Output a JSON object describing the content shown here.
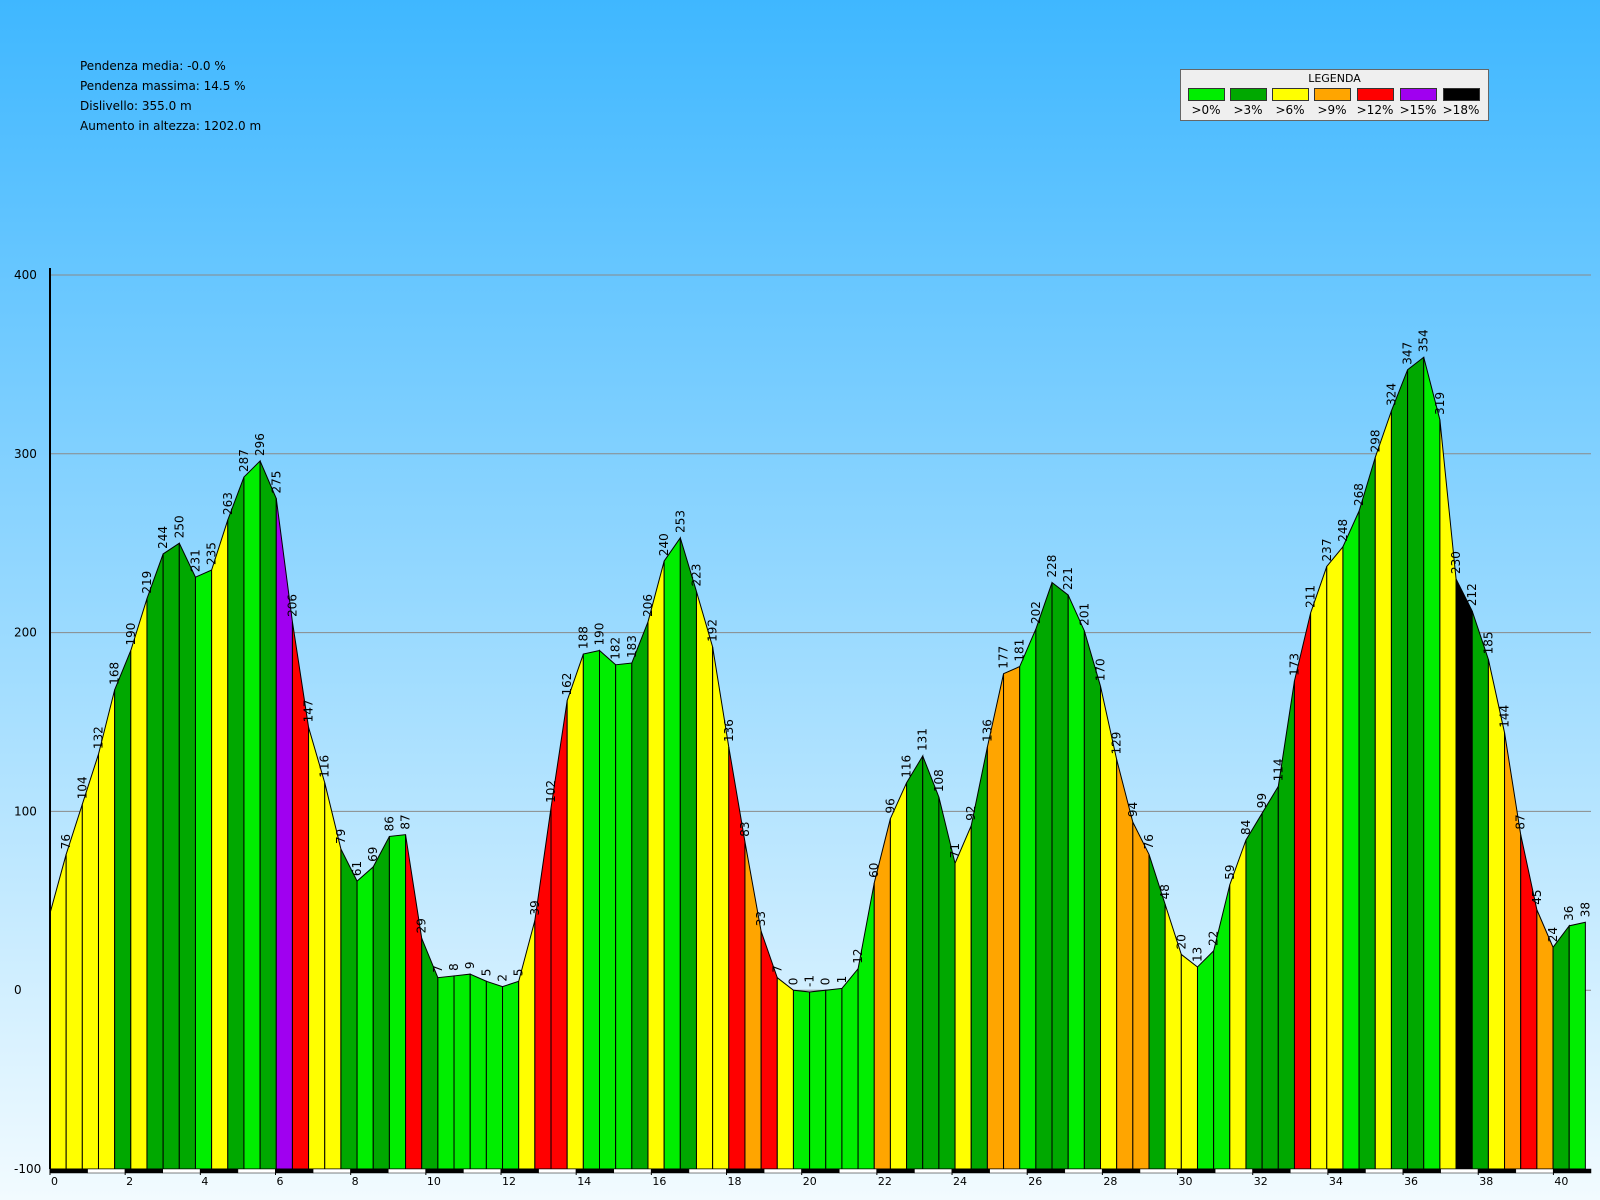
{
  "stats": [
    "Pendenza media: -0.0 %",
    "Pendenza massima: 14.5 %",
    "Dislivello: 355.0 m",
    "Aumento in altezza: 1202.0 m"
  ],
  "legend": {
    "title": "LEGENDA",
    "items": [
      {
        "label": ">0%",
        "color": "#00ee00"
      },
      {
        "label": ">3%",
        "color": "#00a800"
      },
      {
        "label": ">6%",
        "color": "#ffff00"
      },
      {
        "label": ">9%",
        "color": "#ffa500"
      },
      {
        "label": ">12%",
        "color": "#ff0000"
      },
      {
        "label": ">15%",
        "color": "#a000f0"
      },
      {
        "label": ">18%",
        "color": "#000000"
      }
    ]
  },
  "chart_data": {
    "type": "area",
    "xlim": [
      0,
      41
    ],
    "ylim": [
      -100,
      400
    ],
    "yticks": [
      400,
      300,
      200,
      100,
      0,
      -100
    ],
    "xticks": [
      0,
      2,
      4,
      6,
      8,
      10,
      12,
      14,
      16,
      18,
      20,
      22,
      24,
      26,
      28,
      30,
      32,
      34,
      36,
      38,
      40
    ],
    "grid": true,
    "points": [
      {
        "x": 0.0,
        "y": 43,
        "label": "",
        "color": "#ffff00"
      },
      {
        "x": 0.43,
        "y": 76,
        "label": "76",
        "color": "#ffff00"
      },
      {
        "x": 0.86,
        "y": 104,
        "label": "104",
        "color": "#ffff00"
      },
      {
        "x": 1.29,
        "y": 132,
        "label": "132",
        "color": "#ffff00"
      },
      {
        "x": 1.72,
        "y": 168,
        "label": "168",
        "color": "#00a800"
      },
      {
        "x": 2.15,
        "y": 190,
        "label": "190",
        "color": "#ffff00"
      },
      {
        "x": 2.58,
        "y": 219,
        "label": "219",
        "color": "#00a800"
      },
      {
        "x": 3.01,
        "y": 244,
        "label": "244",
        "color": "#00a800"
      },
      {
        "x": 3.44,
        "y": 250,
        "label": "250",
        "color": "#00a800"
      },
      {
        "x": 3.87,
        "y": 231,
        "label": "231",
        "color": "#00ee00"
      },
      {
        "x": 4.3,
        "y": 235,
        "label": "235",
        "color": "#ffff00"
      },
      {
        "x": 4.73,
        "y": 263,
        "label": "263",
        "color": "#00a800"
      },
      {
        "x": 5.16,
        "y": 287,
        "label": "287",
        "color": "#00ee00"
      },
      {
        "x": 5.59,
        "y": 296,
        "label": "296",
        "color": "#00a800"
      },
      {
        "x": 6.02,
        "y": 275,
        "label": "275",
        "color": "#a000f0"
      },
      {
        "x": 6.45,
        "y": 206,
        "label": "206",
        "color": "#ff0000"
      },
      {
        "x": 6.88,
        "y": 147,
        "label": "147",
        "color": "#ffff00"
      },
      {
        "x": 7.31,
        "y": 116,
        "label": "116",
        "color": "#ffff00"
      },
      {
        "x": 7.74,
        "y": 79,
        "label": "79",
        "color": "#00a800"
      },
      {
        "x": 8.17,
        "y": 61,
        "label": "61",
        "color": "#00ee00"
      },
      {
        "x": 8.6,
        "y": 69,
        "label": "69",
        "color": "#00a800"
      },
      {
        "x": 9.03,
        "y": 86,
        "label": "86",
        "color": "#00ee00"
      },
      {
        "x": 9.46,
        "y": 87,
        "label": "87",
        "color": "#ff0000"
      },
      {
        "x": 9.89,
        "y": 29,
        "label": "29",
        "color": "#00a800"
      },
      {
        "x": 10.32,
        "y": 7,
        "label": "7",
        "color": "#00ee00"
      },
      {
        "x": 10.75,
        "y": 8,
        "label": "8",
        "color": "#00ee00"
      },
      {
        "x": 11.18,
        "y": 9,
        "label": "9",
        "color": "#00ee00"
      },
      {
        "x": 11.61,
        "y": 5,
        "label": "5",
        "color": "#00ee00"
      },
      {
        "x": 12.04,
        "y": 2,
        "label": "2",
        "color": "#00ee00"
      },
      {
        "x": 12.47,
        "y": 5,
        "label": "5",
        "color": "#ffff00"
      },
      {
        "x": 12.9,
        "y": 39,
        "label": "39",
        "color": "#ff0000"
      },
      {
        "x": 13.33,
        "y": 102,
        "label": "102",
        "color": "#ff0000"
      },
      {
        "x": 13.76,
        "y": 162,
        "label": "162",
        "color": "#ffff00"
      },
      {
        "x": 14.19,
        "y": 188,
        "label": "188",
        "color": "#00ee00"
      },
      {
        "x": 14.62,
        "y": 190,
        "label": "190",
        "color": "#00ee00"
      },
      {
        "x": 15.05,
        "y": 182,
        "label": "182",
        "color": "#00ee00"
      },
      {
        "x": 15.48,
        "y": 183,
        "label": "183",
        "color": "#00a800"
      },
      {
        "x": 15.91,
        "y": 206,
        "label": "206",
        "color": "#ffff00"
      },
      {
        "x": 16.34,
        "y": 240,
        "label": "240",
        "color": "#00ee00"
      },
      {
        "x": 16.77,
        "y": 253,
        "label": "253",
        "color": "#00a800"
      },
      {
        "x": 17.2,
        "y": 223,
        "label": "223",
        "color": "#ffff00"
      },
      {
        "x": 17.63,
        "y": 192,
        "label": "192",
        "color": "#ffff00"
      },
      {
        "x": 18.06,
        "y": 136,
        "label": "136",
        "color": "#ff0000"
      },
      {
        "x": 18.49,
        "y": 83,
        "label": "83",
        "color": "#ffa500"
      },
      {
        "x": 18.92,
        "y": 33,
        "label": "33",
        "color": "#ff0000"
      },
      {
        "x": 19.35,
        "y": 7,
        "label": "7",
        "color": "#ffff00"
      },
      {
        "x": 19.78,
        "y": 0,
        "label": "0",
        "color": "#00ee00"
      },
      {
        "x": 20.21,
        "y": -1,
        "label": "-1",
        "color": "#00ee00"
      },
      {
        "x": 20.64,
        "y": 0,
        "label": "0",
        "color": "#00ee00"
      },
      {
        "x": 21.07,
        "y": 1,
        "label": "1",
        "color": "#00ee00"
      },
      {
        "x": 21.5,
        "y": 12,
        "label": "12",
        "color": "#00ee00"
      },
      {
        "x": 21.93,
        "y": 60,
        "label": "60",
        "color": "#ffa500"
      },
      {
        "x": 22.36,
        "y": 96,
        "label": "96",
        "color": "#ffff00"
      },
      {
        "x": 22.79,
        "y": 116,
        "label": "116",
        "color": "#00a800"
      },
      {
        "x": 23.22,
        "y": 131,
        "label": "131",
        "color": "#00a800"
      },
      {
        "x": 23.65,
        "y": 108,
        "label": "108",
        "color": "#00a800"
      },
      {
        "x": 24.08,
        "y": 71,
        "label": "71",
        "color": "#ffff00"
      },
      {
        "x": 24.51,
        "y": 92,
        "label": "92",
        "color": "#00a800"
      },
      {
        "x": 24.94,
        "y": 136,
        "label": "136",
        "color": "#ffa500"
      },
      {
        "x": 25.37,
        "y": 177,
        "label": "177",
        "color": "#ffa500"
      },
      {
        "x": 25.8,
        "y": 181,
        "label": "181",
        "color": "#00ee00"
      },
      {
        "x": 26.23,
        "y": 202,
        "label": "202",
        "color": "#00a800"
      },
      {
        "x": 26.66,
        "y": 228,
        "label": "228",
        "color": "#00a800"
      },
      {
        "x": 27.09,
        "y": 221,
        "label": "221",
        "color": "#00ee00"
      },
      {
        "x": 27.52,
        "y": 201,
        "label": "201",
        "color": "#00a800"
      },
      {
        "x": 27.95,
        "y": 170,
        "label": "170",
        "color": "#ffff00"
      },
      {
        "x": 28.38,
        "y": 129,
        "label": "129",
        "color": "#ffa500"
      },
      {
        "x": 28.81,
        "y": 94,
        "label": "94",
        "color": "#ffa500"
      },
      {
        "x": 29.24,
        "y": 76,
        "label": "76",
        "color": "#00a800"
      },
      {
        "x": 29.67,
        "y": 48,
        "label": "48",
        "color": "#ffff00"
      },
      {
        "x": 30.1,
        "y": 20,
        "label": "20",
        "color": "#ffff00"
      },
      {
        "x": 30.53,
        "y": 13,
        "label": "13",
        "color": "#00ee00"
      },
      {
        "x": 30.96,
        "y": 22,
        "label": "22",
        "color": "#00ee00"
      },
      {
        "x": 31.39,
        "y": 59,
        "label": "59",
        "color": "#ffff00"
      },
      {
        "x": 31.82,
        "y": 84,
        "label": "84",
        "color": "#00a800"
      },
      {
        "x": 32.25,
        "y": 99,
        "label": "99",
        "color": "#00a800"
      },
      {
        "x": 32.68,
        "y": 114,
        "label": "114",
        "color": "#00a800"
      },
      {
        "x": 33.11,
        "y": 173,
        "label": "173",
        "color": "#ff0000"
      },
      {
        "x": 33.54,
        "y": 211,
        "label": "211",
        "color": "#ffff00"
      },
      {
        "x": 33.97,
        "y": 237,
        "label": "237",
        "color": "#ffff00"
      },
      {
        "x": 34.4,
        "y": 248,
        "label": "248",
        "color": "#00ee00"
      },
      {
        "x": 34.83,
        "y": 268,
        "label": "268",
        "color": "#00a800"
      },
      {
        "x": 35.26,
        "y": 298,
        "label": "298",
        "color": "#ffff00"
      },
      {
        "x": 35.69,
        "y": 324,
        "label": "324",
        "color": "#00a800"
      },
      {
        "x": 36.12,
        "y": 347,
        "label": "347",
        "color": "#00a800"
      },
      {
        "x": 36.55,
        "y": 354,
        "label": "354",
        "color": "#00ee00"
      },
      {
        "x": 36.98,
        "y": 319,
        "label": "319",
        "color": "#ffff00"
      },
      {
        "x": 37.41,
        "y": 230,
        "label": "230",
        "color": "#000000"
      },
      {
        "x": 37.84,
        "y": 212,
        "label": "212",
        "color": "#00a800"
      },
      {
        "x": 38.27,
        "y": 185,
        "label": "185",
        "color": "#ffff00"
      },
      {
        "x": 38.7,
        "y": 144,
        "label": "144",
        "color": "#ffa500"
      },
      {
        "x": 39.13,
        "y": 87,
        "label": "87",
        "color": "#ff0000"
      },
      {
        "x": 39.56,
        "y": 45,
        "label": "45",
        "color": "#ffa500"
      },
      {
        "x": 39.99,
        "y": 24,
        "label": "24",
        "color": "#00a800"
      },
      {
        "x": 40.42,
        "y": 36,
        "label": "36",
        "color": "#00ee00"
      },
      {
        "x": 40.85,
        "y": 38,
        "label": "38",
        "color": "#00ee00"
      }
    ]
  }
}
